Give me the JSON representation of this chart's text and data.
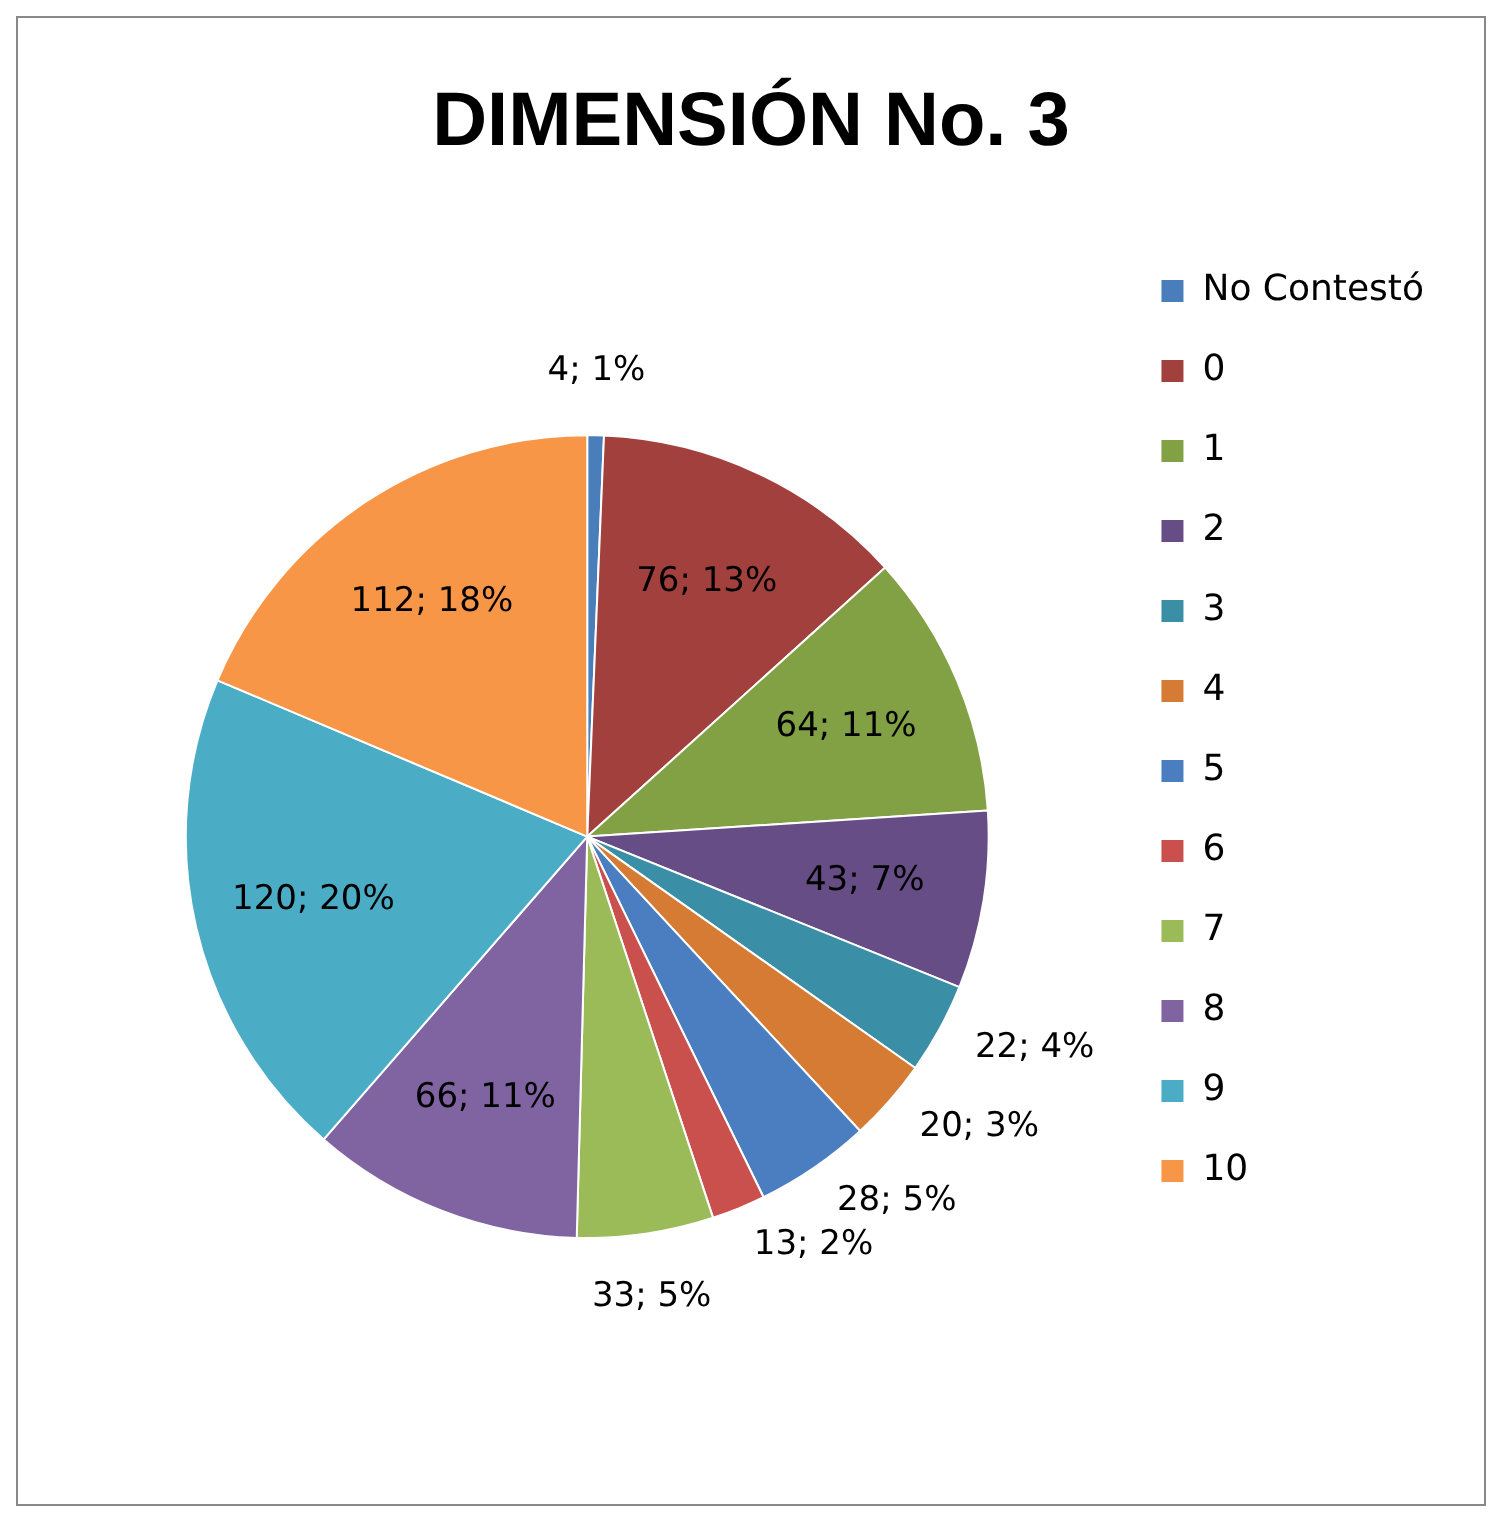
{
  "chart_data": {
    "type": "pie",
    "title": "DIMENSIÓN No. 3",
    "categories": [
      "No Contestó",
      "0",
      "1",
      "2",
      "3",
      "4",
      "5",
      "6",
      "7",
      "8",
      "9",
      "10"
    ],
    "values": [
      4,
      76,
      64,
      43,
      22,
      20,
      28,
      13,
      33,
      66,
      120,
      112
    ],
    "value_labels": [
      "4; 1%",
      "76; 13%",
      "64; 11%",
      "43; 7%",
      "22; 4%",
      "20; 3%",
      "28; 5%",
      "13; 2%",
      "33; 5%",
      "66; 11%",
      "120; 20%",
      "112; 18%"
    ],
    "colors": [
      "#4a7ebb",
      "#a2403d",
      "#82a044",
      "#674d85",
      "#3a8ea5",
      "#d57b33",
      "#4a7ec0",
      "#c9504d",
      "#9bbb59",
      "#8064a2",
      "#4bacc6",
      "#f79646"
    ],
    "legend": "right"
  }
}
